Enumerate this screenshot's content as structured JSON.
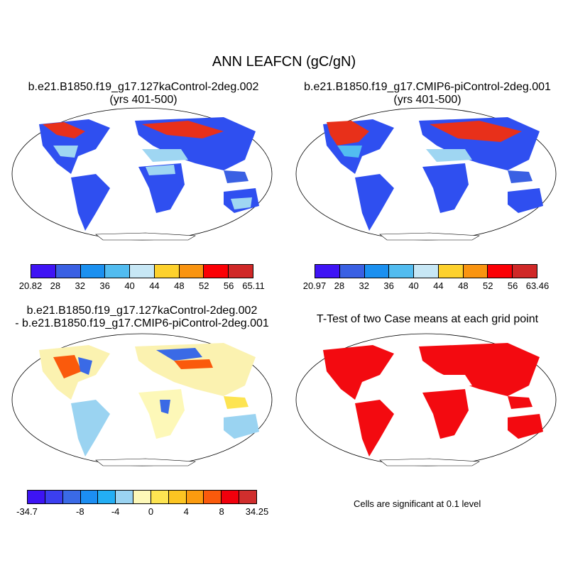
{
  "figure": {
    "title": "ANN LEAFCN (gC/gN)"
  },
  "panels": {
    "top_left": {
      "title": "b.e21.B1850.f19_g17.127kaControl-2deg.002",
      "subtitle": "(yrs 401-500)"
    },
    "top_right": {
      "title": "b.e21.B1850.f19_g17.CMIP6-piControl-2deg.001",
      "subtitle": "(yrs 401-500)"
    },
    "bottom_left": {
      "title": "b.e21.B1850.f19_g17.127kaControl-2deg.002",
      "subtitle": "- b.e21.B1850.f19_g17.CMIP6-piControl-2deg.001"
    },
    "bottom_right": {
      "title": "T-Test of two Case means at each grid point",
      "note": "Cells are significant at 0.1 level"
    }
  },
  "colorbars": {
    "top_left": {
      "colors": [
        "#3f14f5",
        "#3a60e3",
        "#1b90f0",
        "#52bcf0",
        "#c7e7f5",
        "#fdd12d",
        "#f99410",
        "#fb0005",
        "#d02827"
      ],
      "labels": [
        "20.82",
        "28",
        "32",
        "36",
        "40",
        "44",
        "48",
        "52",
        "56",
        "65.11"
      ]
    },
    "top_right": {
      "colors": [
        "#3f14f5",
        "#3a60e3",
        "#1b90f0",
        "#52bcf0",
        "#c7e7f5",
        "#fdd12d",
        "#f99410",
        "#fb0005",
        "#d02827"
      ],
      "labels": [
        "20.97",
        "28",
        "32",
        "36",
        "40",
        "44",
        "48",
        "52",
        "56",
        "63.46"
      ]
    },
    "bottom_left": {
      "colors": [
        "#3d14f4",
        "#3b3ff0",
        "#3a6ae6",
        "#1c8ef2",
        "#23aef4",
        "#9ad3f1",
        "#fdf8b8",
        "#fde452",
        "#fcc522",
        "#fb9b0f",
        "#fa5a0c",
        "#f1000c",
        "#d02e2d"
      ],
      "labels": [
        "-34.7",
        "-8",
        "-4",
        "0",
        "4",
        "8",
        "34.25"
      ]
    }
  },
  "colors": {
    "land_mean": "#2f4ff0",
    "land_high": "#e8301a",
    "land_light": "#9fd6f2",
    "diff_base": "#fbf2b0",
    "ttest": "#f30a10"
  }
}
